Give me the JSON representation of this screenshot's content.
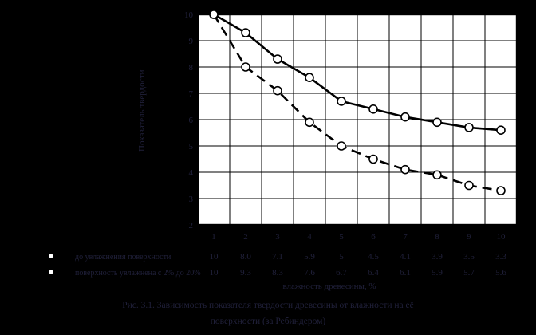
{
  "page": {
    "background": "#000000",
    "ink_color": "#20203a",
    "plot_background": "#ffffff",
    "line_color": "#000000"
  },
  "chart_data": {
    "type": "line",
    "title": "",
    "x": [
      1,
      2,
      3,
      4,
      5,
      6,
      7,
      8,
      9,
      10
    ],
    "x_tick_labels": [
      "1",
      "2",
      "3",
      "4",
      "5",
      "6",
      "7",
      "8",
      "9",
      "10"
    ],
    "y_tick_labels": [
      "10",
      "9",
      "8",
      "7",
      "6",
      "5",
      "4",
      "3",
      "2"
    ],
    "xlim": [
      1,
      10
    ],
    "ylim": [
      2,
      10
    ],
    "grid": true,
    "legend_position": "table-below",
    "xlabel": "влажность древесины, %",
    "ylabel": "Показатель твердости",
    "series": [
      {
        "name": "до увлажнения поверхности",
        "line_style": "dashed",
        "marker": "circle",
        "color": "#000000",
        "values": [
          10,
          8.0,
          7.1,
          5.9,
          5.0,
          4.5,
          4.1,
          3.9,
          3.5,
          3.3
        ]
      },
      {
        "name": "поверхность увлажнена с 2% до 20%",
        "line_style": "solid",
        "marker": "circle",
        "color": "#000000",
        "values": [
          10,
          9.3,
          8.3,
          7.6,
          6.7,
          6.4,
          6.1,
          5.9,
          5.7,
          5.6
        ]
      }
    ]
  },
  "table": {
    "rows": [
      {
        "bullet": "•",
        "label": "до увлажнения поверхности",
        "values": [
          "10",
          "8.0",
          "7.1",
          "5.9",
          "5",
          "4.5",
          "4.1",
          "3.9",
          "3.5",
          "3.3"
        ]
      },
      {
        "bullet": "•",
        "label": "поверхность увлажнена с 2% до 20%",
        "values": [
          "10",
          "9.3",
          "8.3",
          "7.6",
          "6.7",
          "6.4",
          "6.1",
          "5.9",
          "5.7",
          "5.6"
        ]
      }
    ]
  },
  "caption": {
    "line1": "Рис. 3.1. Зависимость показателя твердости древесины от влажности на её",
    "line2": "поверхности (за Ребиндером)"
  }
}
